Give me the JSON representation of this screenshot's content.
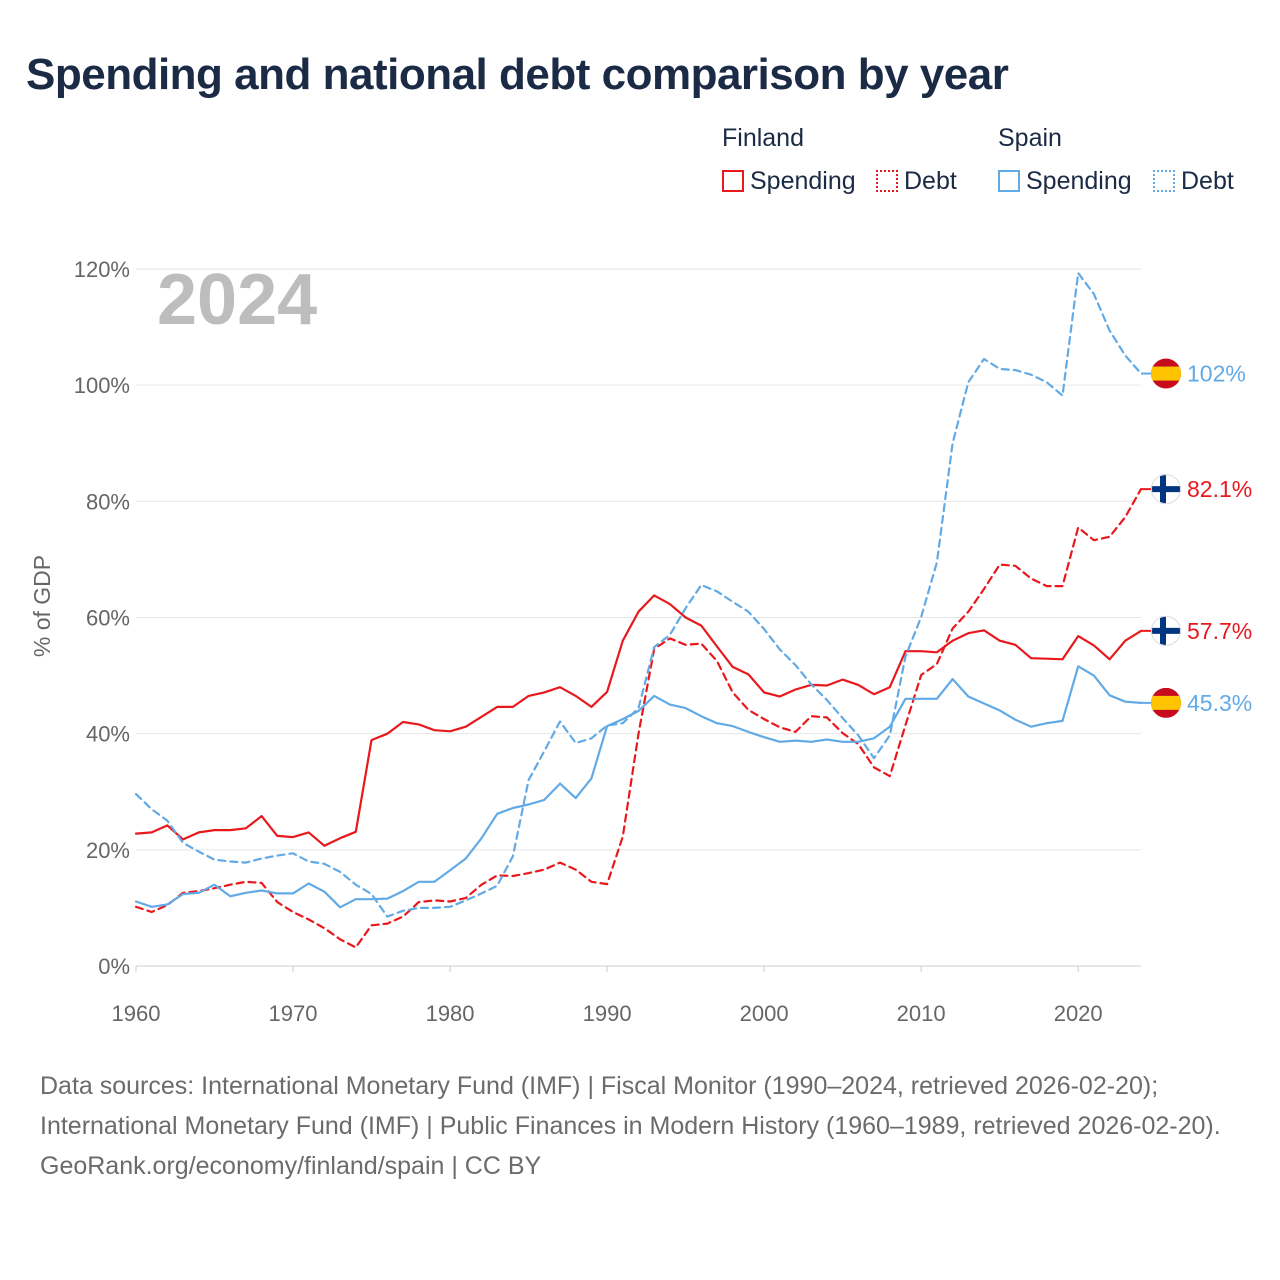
{
  "title": "Spending and national debt comparison by year",
  "legend": {
    "finland": {
      "title": "Finland",
      "spending": "Spending",
      "debt": "Debt"
    },
    "spain": {
      "title": "Spain",
      "spending": "Spending",
      "debt": "Debt"
    }
  },
  "colors": {
    "finland": "#e8191d",
    "spain": "#62aae6"
  },
  "footer": {
    "sources": "Data sources: International Monetary Fund (IMF) | Fiscal Monitor (1990–2024, retrieved 2026-02-20); International Monetary Fund (IMF) | Public Finances in Modern History (1960–1989, retrieved 2026-02-20).",
    "credit": "GeoRank.org/economy/finland/spain | CC BY"
  },
  "chart_data": {
    "type": "line",
    "year_label": "2024",
    "ylabel": "% of GDP",
    "xlim": [
      1960,
      2024
    ],
    "ylim": [
      0,
      120
    ],
    "x_ticks": [
      1960,
      1970,
      1980,
      1990,
      2000,
      2010,
      2020
    ],
    "y_ticks": [
      {
        "value": 0,
        "label": "0%"
      },
      {
        "value": 20,
        "label": "20%"
      },
      {
        "value": 40,
        "label": "40%"
      },
      {
        "value": 60,
        "label": "60%"
      },
      {
        "value": 80,
        "label": "80%"
      },
      {
        "value": 100,
        "label": "100%"
      },
      {
        "value": 120,
        "label": "120%"
      }
    ],
    "x": [
      1960,
      1961,
      1962,
      1963,
      1964,
      1965,
      1966,
      1967,
      1968,
      1969,
      1970,
      1971,
      1972,
      1973,
      1974,
      1975,
      1976,
      1977,
      1978,
      1979,
      1980,
      1981,
      1982,
      1983,
      1984,
      1985,
      1986,
      1987,
      1988,
      1989,
      1990,
      1991,
      1992,
      1993,
      1994,
      1995,
      1996,
      1997,
      1998,
      1999,
      2000,
      2001,
      2002,
      2003,
      2004,
      2005,
      2006,
      2007,
      2008,
      2009,
      2010,
      2011,
      2012,
      2013,
      2014,
      2015,
      2016,
      2017,
      2018,
      2019,
      2020,
      2021,
      2022,
      2023,
      2024
    ],
    "series": [
      {
        "name": "Finland Spending",
        "country": "finland",
        "style": "solid",
        "end_label": "57.7%",
        "values": [
          22.8,
          23,
          24.2,
          21.8,
          23,
          23.4,
          23.4,
          23.7,
          25.8,
          22.4,
          22.2,
          23,
          20.7,
          22,
          23.1,
          38.9,
          40,
          42,
          41.6,
          40.6,
          40.4,
          41.2,
          42.9,
          44.6,
          44.6,
          46.5,
          47.1,
          48,
          46.5,
          44.6,
          47.2,
          56,
          61,
          63.8,
          62.3,
          60,
          58.6,
          55,
          51.5,
          50.2,
          47.1,
          46.4,
          47.6,
          48.4,
          48.3,
          49.3,
          48.4,
          46.8,
          48,
          54.2,
          54.2,
          54,
          56,
          57.3,
          57.8,
          56,
          55.3,
          53,
          52.9,
          52.8,
          56.8,
          55.2,
          52.8,
          56,
          57.7
        ]
      },
      {
        "name": "Finland Debt",
        "country": "finland",
        "style": "dashed",
        "end_label": "82.1%",
        "values": [
          10.2,
          9.3,
          10.5,
          12.6,
          12.9,
          13.4,
          14,
          14.5,
          14.3,
          11,
          9.3,
          8,
          6.5,
          4.6,
          3.2,
          7,
          7.3,
          8.5,
          11,
          11.3,
          11.1,
          11.7,
          14,
          15.6,
          15.5,
          16,
          16.6,
          17.8,
          16.6,
          14.5,
          14.1,
          22.3,
          40,
          54.6,
          56.4,
          55.3,
          55.5,
          52.5,
          47.1,
          44.1,
          42.5,
          41.1,
          40.3,
          43,
          42.8,
          40.1,
          38.2,
          34.2,
          32.7,
          41.5,
          50.1,
          52,
          58.1,
          61,
          64.9,
          69.1,
          68.9,
          66.7,
          65.4,
          65.4,
          75.5,
          73.3,
          73.9,
          77.3,
          82.1
        ]
      },
      {
        "name": "Spain Spending",
        "country": "spain",
        "style": "solid",
        "end_label": "45.3%",
        "values": [
          11.1,
          10.2,
          10.6,
          12.4,
          12.6,
          14,
          12,
          12.6,
          13,
          12.5,
          12.5,
          14.2,
          12.8,
          10.1,
          11.5,
          11.5,
          11.6,
          12.9,
          14.5,
          14.5,
          16.5,
          18.5,
          22,
          26.2,
          27.2,
          27.8,
          28.6,
          31.4,
          28.9,
          32.3,
          41.3,
          42.5,
          43.9,
          46.5,
          45,
          44.4,
          43,
          41.8,
          41.3,
          40.3,
          39.4,
          38.6,
          38.8,
          38.6,
          39,
          38.6,
          38.6,
          39.2,
          41.2,
          46,
          46,
          46,
          49.4,
          46.4,
          45.2,
          44,
          42.4,
          41.2,
          41.8,
          42.2,
          51.6,
          50,
          46.6,
          45.5,
          45.3
        ]
      },
      {
        "name": "Spain Debt",
        "country": "spain",
        "style": "dashed",
        "end_label": "102%",
        "values": [
          29.6,
          27,
          25,
          21.2,
          19.7,
          18.3,
          18,
          17.8,
          18.5,
          19,
          19.4,
          18,
          17.6,
          16.2,
          14,
          12.4,
          8.5,
          9.5,
          10,
          10,
          10.2,
          11.3,
          12.5,
          13.8,
          18.9,
          32,
          37,
          42.1,
          38.4,
          39.2,
          41.4,
          41.8,
          44.4,
          54.9,
          57,
          61.6,
          65.6,
          64.5,
          62.7,
          61,
          58,
          54.5,
          51.8,
          48.5,
          45.8,
          42.7,
          39.7,
          35.8,
          39.7,
          53.3,
          60.1,
          69.5,
          90,
          100.5,
          104.5,
          102.8,
          102.6,
          101.8,
          100.5,
          98.2,
          119.3,
          115.7,
          109.4,
          105.1,
          102
        ]
      }
    ]
  }
}
